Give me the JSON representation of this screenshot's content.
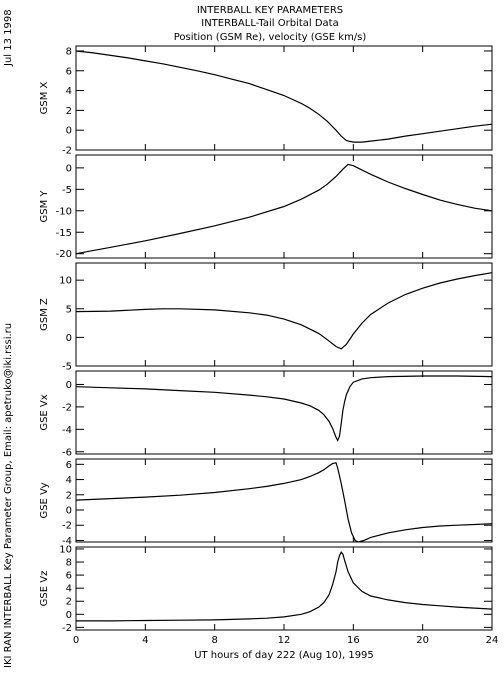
{
  "header": {
    "title_lines": [
      "INTERBALL KEY PARAMETERS",
      "INTERBALL-Tail Orbital Data",
      "Position (GSM Re), velocity (GSE km/s)"
    ],
    "date_stamp": "Jul 13 1998",
    "credit": "IKI RAN INTERBALL Key Parameter Group, Email: apetruko@iki.rssi.ru"
  },
  "chart_data": {
    "type": "line",
    "xlabel": "UT hours of day 222 (Aug 10), 1995",
    "xlim": [
      0,
      24
    ],
    "xticks": [
      0,
      4,
      8,
      12,
      16,
      20,
      24
    ],
    "xtick_labels": [
      "0",
      "4",
      "8",
      "12",
      "16",
      "20",
      "24"
    ],
    "panels": [
      {
        "ylabel": "GSM X",
        "ylim": [
          -2,
          8.5
        ],
        "yticks": [
          -2,
          0,
          2,
          4,
          6,
          8
        ],
        "ytick_labels": [
          "-2",
          "0",
          "2",
          "4",
          "6",
          "8"
        ],
        "x": [
          0,
          1,
          2,
          3,
          4,
          5,
          6,
          7,
          8,
          9,
          10,
          11,
          12,
          12.5,
          13,
          13.5,
          14,
          14.5,
          15,
          15.3,
          15.6,
          16,
          16.5,
          17,
          18,
          19,
          20,
          21,
          22,
          23,
          24
        ],
        "y": [
          8.0,
          7.8,
          7.55,
          7.3,
          7.0,
          6.7,
          6.35,
          6.0,
          5.6,
          5.15,
          4.7,
          4.1,
          3.5,
          3.1,
          2.7,
          2.2,
          1.6,
          0.9,
          0.0,
          -0.6,
          -1.05,
          -1.2,
          -1.2,
          -1.1,
          -0.9,
          -0.6,
          -0.35,
          -0.1,
          0.15,
          0.4,
          0.6
        ]
      },
      {
        "ylabel": "GSM Y",
        "ylim": [
          -21,
          3
        ],
        "yticks": [
          -20,
          -15,
          -10,
          -5,
          0
        ],
        "ytick_labels": [
          "-20",
          "-15",
          "-10",
          "-5",
          "0"
        ],
        "x": [
          0,
          2,
          4,
          6,
          8,
          10,
          12,
          13,
          14,
          14.5,
          15,
          15.4,
          15.7,
          16,
          17,
          18,
          19,
          20,
          21,
          22,
          23,
          24
        ],
        "y": [
          -20,
          -18.5,
          -17,
          -15.3,
          -13.5,
          -11.5,
          -9.0,
          -7.3,
          -5.2,
          -3.8,
          -2.0,
          -0.3,
          0.8,
          0.5,
          -1.5,
          -3.3,
          -4.8,
          -6.2,
          -7.5,
          -8.5,
          -9.4,
          -10.0
        ]
      },
      {
        "ylabel": "GSM Z",
        "ylim": [
          -5,
          13
        ],
        "yticks": [
          -5,
          0,
          5,
          10
        ],
        "ytick_labels": [
          "-5",
          "0",
          "5",
          "10"
        ],
        "x": [
          0,
          2,
          4,
          5,
          6,
          8,
          10,
          11,
          12,
          13,
          14,
          14.5,
          15,
          15.3,
          15.6,
          16,
          16.5,
          17,
          18,
          19,
          20,
          21,
          22,
          23,
          24
        ],
        "y": [
          4.5,
          4.6,
          4.9,
          5.0,
          5.0,
          4.8,
          4.3,
          3.9,
          3.2,
          2.2,
          0.7,
          -0.4,
          -1.6,
          -2.0,
          -1.2,
          0.6,
          2.5,
          4.0,
          6.0,
          7.5,
          8.6,
          9.5,
          10.2,
          10.8,
          11.3
        ]
      },
      {
        "ylabel": "GSE Vx",
        "ylim": [
          -6.2,
          1.2
        ],
        "yticks": [
          -6,
          -4,
          -2,
          0
        ],
        "ytick_labels": [
          "-6",
          "-4",
          "-2",
          "0"
        ],
        "x": [
          0,
          2,
          4,
          6,
          8,
          10,
          11,
          12,
          13,
          13.5,
          14,
          14.3,
          14.6,
          14.8,
          15,
          15.1,
          15.2,
          15.3,
          15.4,
          15.5,
          15.6,
          15.8,
          16,
          16.5,
          17,
          18,
          20,
          22,
          24
        ],
        "y": [
          -0.2,
          -0.3,
          -0.4,
          -0.55,
          -0.7,
          -0.95,
          -1.1,
          -1.3,
          -1.65,
          -1.9,
          -2.3,
          -2.7,
          -3.3,
          -3.9,
          -4.7,
          -5.0,
          -4.6,
          -3.5,
          -2.3,
          -1.5,
          -0.9,
          -0.2,
          0.2,
          0.5,
          0.6,
          0.7,
          0.75,
          0.75,
          0.7
        ]
      },
      {
        "ylabel": "GSE Vy",
        "ylim": [
          -4.2,
          6.7
        ],
        "yticks": [
          -4,
          -2,
          0,
          2,
          4,
          6
        ],
        "ytick_labels": [
          "-4",
          "-2",
          "0",
          "2",
          "4",
          "6"
        ],
        "x": [
          0,
          2,
          4,
          6,
          8,
          10,
          11,
          12,
          13,
          13.5,
          14,
          14.3,
          14.6,
          14.8,
          15,
          15.1,
          15.3,
          15.5,
          15.7,
          15.9,
          16.1,
          16.3,
          16.6,
          17,
          18,
          19,
          20,
          21,
          22,
          23,
          24
        ],
        "y": [
          1.3,
          1.5,
          1.7,
          1.95,
          2.3,
          2.8,
          3.1,
          3.5,
          4.0,
          4.4,
          4.9,
          5.3,
          5.8,
          6.1,
          6.2,
          5.5,
          3.5,
          1.2,
          -1.2,
          -3.0,
          -4.0,
          -4.2,
          -4.0,
          -3.6,
          -3.0,
          -2.6,
          -2.3,
          -2.1,
          -2.0,
          -1.9,
          -1.8
        ]
      },
      {
        "ylabel": "GSE Vz",
        "ylim": [
          -2.4,
          10.3
        ],
        "yticks": [
          -2,
          0,
          2,
          4,
          6,
          8,
          10
        ],
        "ytick_labels": [
          "-2",
          "0",
          "2",
          "4",
          "6",
          "8",
          "10"
        ],
        "x": [
          0,
          2,
          4,
          6,
          8,
          10,
          11,
          12,
          13,
          13.5,
          14,
          14.3,
          14.6,
          14.8,
          15,
          15.1,
          15.2,
          15.3,
          15.4,
          15.5,
          15.7,
          16,
          16.5,
          17,
          18,
          19,
          20,
          21,
          22,
          23,
          24
        ],
        "y": [
          -1.0,
          -1.0,
          -0.95,
          -0.9,
          -0.85,
          -0.7,
          -0.6,
          -0.4,
          0.0,
          0.4,
          1.1,
          1.8,
          3.0,
          4.5,
          6.5,
          8.0,
          9.0,
          9.5,
          9.2,
          8.2,
          6.5,
          4.8,
          3.5,
          2.8,
          2.2,
          1.8,
          1.5,
          1.3,
          1.1,
          0.95,
          0.8
        ]
      }
    ]
  }
}
